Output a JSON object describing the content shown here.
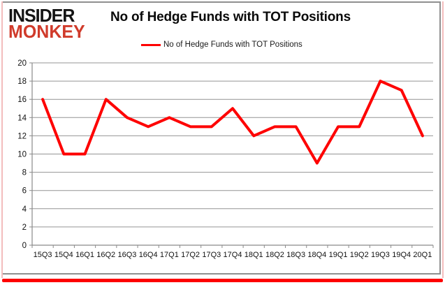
{
  "logo": {
    "line1": "INSIDER",
    "line2": "MONKEY"
  },
  "header": {
    "title": "No of Hedge Funds with TOT Positions"
  },
  "legend": {
    "label": "No of Hedge Funds with TOT Positions"
  },
  "colors": {
    "series_line": "#fe0000",
    "grid": "#949494",
    "axis": "#8a8a8a",
    "tick_label": "#111111",
    "logo_black": "#141414",
    "logo_red": "#d03b2b",
    "frame_gray": "#8f8f8f",
    "frame_pink": "#f3bdbd",
    "shadow_red": "#fe0000"
  },
  "chart_data": {
    "type": "line",
    "title": "No of Hedge Funds with TOT Positions",
    "categories": [
      "15Q3",
      "15Q4",
      "16Q1",
      "16Q2",
      "16Q3",
      "16Q4",
      "17Q1",
      "17Q2",
      "17Q3",
      "17Q4",
      "18Q1",
      "18Q2",
      "18Q3",
      "18Q4",
      "19Q1",
      "19Q2",
      "19Q3",
      "19Q4",
      "20Q1"
    ],
    "series": [
      {
        "name": "No of Hedge Funds with TOT Positions",
        "values": [
          16,
          10,
          10,
          16,
          14,
          13,
          14,
          13,
          13,
          15,
          12,
          13,
          13,
          9,
          13,
          13,
          18,
          17,
          12
        ]
      }
    ],
    "xlabel": "",
    "ylabel": "",
    "ylim": [
      0,
      20
    ],
    "yticks": [
      0,
      2,
      4,
      6,
      8,
      10,
      12,
      14,
      16,
      18,
      20
    ],
    "grid": true,
    "legend_position": "top"
  }
}
